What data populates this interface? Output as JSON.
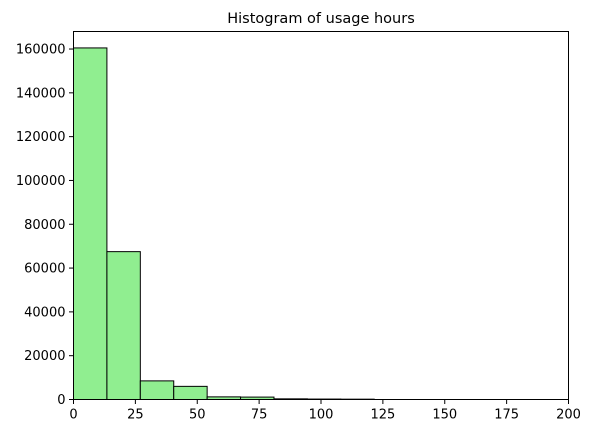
{
  "chart_data": {
    "type": "bar",
    "title": "Histogram of usage hours",
    "xlabel": "",
    "ylabel": "",
    "xlim": [
      0,
      200
    ],
    "ylim": [
      0,
      168000
    ],
    "x_ticks": [
      0,
      25,
      50,
      75,
      100,
      125,
      150,
      175,
      200
    ],
    "y_ticks": [
      0,
      20000,
      40000,
      60000,
      80000,
      100000,
      120000,
      140000,
      160000
    ],
    "grid": false,
    "bar_color": "#90ee90",
    "edge_color": "#000000",
    "bins": [
      {
        "start": 0,
        "end": 13.5,
        "count": 160500
      },
      {
        "start": 13.5,
        "end": 27,
        "count": 67500
      },
      {
        "start": 27,
        "end": 40.5,
        "count": 8500
      },
      {
        "start": 40.5,
        "end": 54,
        "count": 6000
      },
      {
        "start": 54,
        "end": 67.5,
        "count": 1200
      },
      {
        "start": 67.5,
        "end": 81,
        "count": 1100
      },
      {
        "start": 81,
        "end": 94.5,
        "count": 300
      },
      {
        "start": 94.5,
        "end": 108,
        "count": 200
      },
      {
        "start": 108,
        "end": 121.5,
        "count": 150
      }
    ]
  }
}
